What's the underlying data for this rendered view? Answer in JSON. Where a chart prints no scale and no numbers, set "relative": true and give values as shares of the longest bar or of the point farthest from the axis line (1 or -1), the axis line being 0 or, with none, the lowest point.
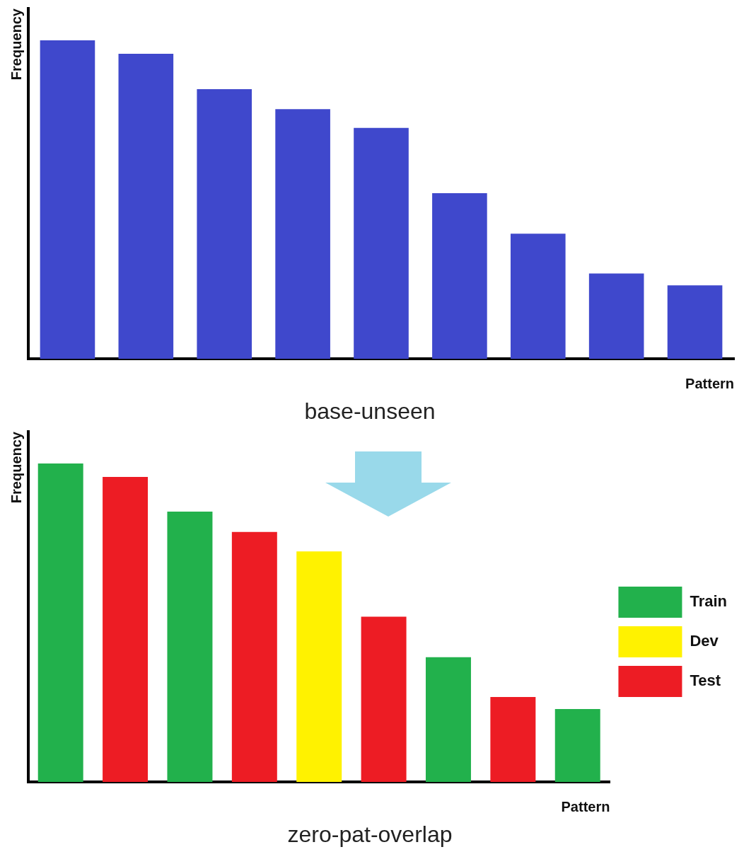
{
  "chart_data": [
    {
      "type": "bar",
      "relative": true,
      "title": "base-unseen",
      "xlabel": "Pattern",
      "ylabel": "Frequency",
      "grid": false,
      "legend": false,
      "categories": [
        null,
        null,
        null,
        null,
        null,
        null,
        null,
        null,
        null
      ],
      "values": [
        1,
        0.958,
        0.847,
        0.784,
        0.725,
        0.52,
        0.393,
        0.268,
        0.231
      ],
      "color": "#3f48cc"
    },
    {
      "type": "bar",
      "relative": true,
      "stacked": true,
      "title": "zero-pat-overlap",
      "xlabel": "Pattern",
      "ylabel": "Frequency",
      "grid": false,
      "legend": "right",
      "categories": [
        null,
        null,
        null,
        null,
        null,
        null,
        null,
        null,
        null
      ],
      "series": [
        {
          "name": "Train",
          "color": "#22b14c",
          "values": [
            1,
            null,
            0.849,
            null,
            null,
            null,
            0.392,
            null,
            0.229
          ]
        },
        {
          "name": "Dev",
          "color": "#fff200",
          "values": [
            null,
            null,
            null,
            null,
            0.724,
            null,
            null,
            null,
            null
          ]
        },
        {
          "name": "Test",
          "color": "#ed1c24",
          "values": [
            null,
            0.958,
            null,
            0.785,
            null,
            0.519,
            null,
            0.267,
            null
          ]
        }
      ]
    }
  ]
}
